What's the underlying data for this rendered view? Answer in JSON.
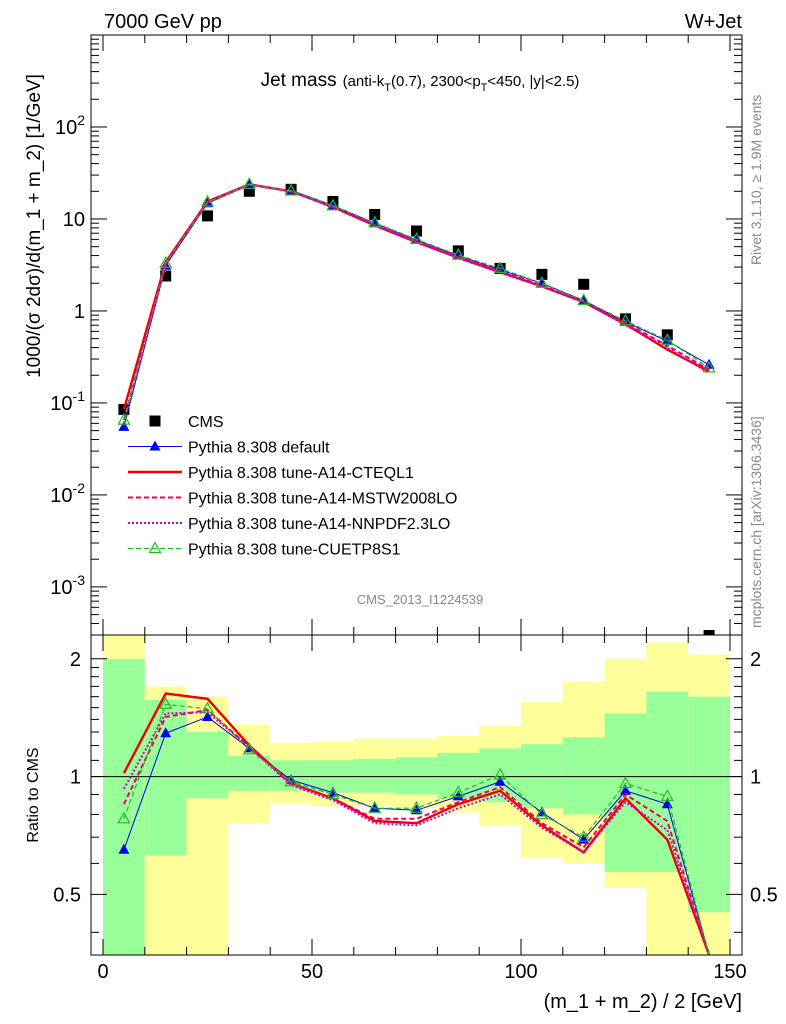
{
  "header": {
    "left": "7000 GeV pp",
    "right": "W+Jet"
  },
  "side_labels": {
    "rivet": "Rivet 3.1.10, ≥ 1.9M events",
    "source": "mcplots.cern.ch [arXiv:1306.3436]"
  },
  "watermark": "CMS_2013_I1224539",
  "plot_title": {
    "main": "Jet mass",
    "detail_start": "(anti-k",
    "detail_sub1": "T",
    "detail_mid": "(0.7), 2300<p",
    "detail_sub2": "T",
    "detail_end": "<450, |y|<2.5)"
  },
  "colors": {
    "cms": "#000000",
    "default": "#0000ee",
    "cteql1": "#ee0000",
    "mstw": "#ee0066",
    "nnpdf": "#cc00cc",
    "cuetp8s1": "#22bb22",
    "band_inner": "#99ff99",
    "band_outer": "#ffff99"
  },
  "chart_data": [
    {
      "type": "line",
      "panel": "main",
      "ylabel": "1000/(σ 2dσ)/d(m_1 + m_2) [1/GeV]",
      "xlim": [
        0,
        150
      ],
      "ylim": [
        0.0003,
        1000
      ],
      "yscale": "log",
      "x": [
        5,
        15,
        25,
        35,
        45,
        55,
        65,
        75,
        85,
        95,
        105,
        115,
        125,
        135,
        145
      ],
      "yticks": [
        {
          "v": 0.001,
          "b": "10",
          "e": "-3"
        },
        {
          "v": 0.01,
          "b": "10",
          "e": "-2"
        },
        {
          "v": 0.1,
          "b": "10",
          "e": "-1"
        },
        {
          "v": 1,
          "b": "1",
          "e": ""
        },
        {
          "v": 10,
          "b": "10",
          "e": ""
        },
        {
          "v": 100,
          "b": "10",
          "e": "2"
        }
      ],
      "series": [
        {
          "name": "CMS",
          "key": "cms",
          "values": [
            0.085,
            2.4,
            10.8,
            20.0,
            21.0,
            15.5,
            11.2,
            7.4,
            4.5,
            2.9,
            2.5,
            1.95,
            0.82,
            0.55,
            0.00022
          ]
        },
        {
          "name": "Pythia 8.308 default",
          "key": "default",
          "values": [
            0.055,
            3.1,
            14.8,
            23.5,
            20.5,
            14.0,
            9.0,
            5.9,
            4.0,
            2.8,
            2.0,
            1.3,
            0.76,
            0.47,
            0.26
          ]
        },
        {
          "name": "Pythia 8.308 tune-A14-CTEQL1",
          "key": "cteql1",
          "values": [
            0.085,
            3.4,
            15.5,
            23.8,
            20.0,
            13.5,
            8.5,
            5.6,
            3.8,
            2.65,
            1.85,
            1.25,
            0.72,
            0.38,
            0.22
          ]
        },
        {
          "name": "Pythia 8.308 tune-A14-MSTW2008LO",
          "key": "mstw",
          "values": [
            0.065,
            3.3,
            15.2,
            23.7,
            20.0,
            13.6,
            8.6,
            5.7,
            3.85,
            2.7,
            1.9,
            1.27,
            0.74,
            0.42,
            0.23
          ]
        },
        {
          "name": "Pythia 8.308 tune-A14-NNPDF2.3LO",
          "key": "nnpdf",
          "values": [
            0.06,
            3.2,
            15.0,
            23.6,
            20.0,
            13.5,
            8.5,
            5.6,
            3.75,
            2.6,
            1.85,
            1.25,
            0.7,
            0.4,
            0.21
          ]
        },
        {
          "name": "Pythia 8.308 tune-CUETP8S1",
          "key": "cuetp8s1",
          "values": [
            0.065,
            3.3,
            15.3,
            23.8,
            20.2,
            13.9,
            9.1,
            6.0,
            4.05,
            2.9,
            2.0,
            1.3,
            0.78,
            0.48,
            0.24
          ]
        }
      ]
    },
    {
      "type": "line",
      "panel": "ratio",
      "xlabel": "(m_1 + m_2) / 2 [GeV]",
      "ylabel": "Ratio to CMS",
      "xlim": [
        0,
        150
      ],
      "ylim": [
        0.35,
        2.3
      ],
      "yscale": "log",
      "xticks": [
        0,
        50,
        100,
        150
      ],
      "yticks": [
        0.5,
        1,
        2
      ],
      "reference": 1,
      "bands": {
        "edges": [
          0,
          10,
          20,
          30,
          40,
          50,
          60,
          70,
          80,
          90,
          100,
          110,
          120,
          130,
          140,
          150
        ],
        "inner": [
          [
            0.35,
            2.0
          ],
          [
            0.63,
            1.57
          ],
          [
            0.88,
            1.3
          ],
          [
            0.92,
            1.13
          ],
          [
            0.92,
            1.1
          ],
          [
            0.91,
            1.1
          ],
          [
            0.91,
            1.11
          ],
          [
            0.9,
            1.12
          ],
          [
            0.88,
            1.15
          ],
          [
            0.86,
            1.18
          ],
          [
            0.83,
            1.21
          ],
          [
            0.8,
            1.26
          ],
          [
            0.57,
            1.45
          ],
          [
            0.57,
            1.65
          ],
          [
            0.45,
            1.6
          ]
        ],
        "outer": [
          [
            0.35,
            2.3
          ],
          [
            0.35,
            1.7
          ],
          [
            0.35,
            1.6
          ],
          [
            0.76,
            1.36
          ],
          [
            0.85,
            1.22
          ],
          [
            0.84,
            1.23
          ],
          [
            0.84,
            1.25
          ],
          [
            0.83,
            1.25
          ],
          [
            0.81,
            1.27
          ],
          [
            0.75,
            1.35
          ],
          [
            0.62,
            1.55
          ],
          [
            0.6,
            1.75
          ],
          [
            0.52,
            2.0
          ],
          [
            0.35,
            2.2
          ],
          [
            0.35,
            2.05
          ]
        ]
      },
      "series": [
        {
          "name": "Pythia 8.308 default",
          "key": "default",
          "values": [
            0.65,
            1.29,
            1.42,
            1.18,
            0.98,
            0.91,
            0.83,
            0.82,
            0.89,
            0.97,
            0.81,
            0.69,
            0.92,
            0.85,
            0.3
          ]
        },
        {
          "name": "Pythia 8.308 tune-A14-CTEQL1",
          "key": "cteql1",
          "values": [
            1.02,
            1.63,
            1.58,
            1.2,
            0.96,
            0.88,
            0.77,
            0.76,
            0.85,
            0.92,
            0.75,
            0.64,
            0.88,
            0.69,
            0.3
          ]
        },
        {
          "name": "Pythia 8.308 tune-A14-MSTW2008LO",
          "key": "mstw",
          "values": [
            0.85,
            1.42,
            1.48,
            1.19,
            0.96,
            0.88,
            0.78,
            0.78,
            0.86,
            0.94,
            0.76,
            0.66,
            0.9,
            0.77,
            0.3
          ]
        },
        {
          "name": "Pythia 8.308 tune-A14-NNPDF2.3LO",
          "key": "nnpdf",
          "values": [
            0.93,
            1.45,
            1.46,
            1.19,
            0.95,
            0.87,
            0.76,
            0.75,
            0.83,
            0.9,
            0.74,
            0.64,
            0.86,
            0.73,
            0.3
          ]
        },
        {
          "name": "Pythia 8.308 tune-CUETP8S1",
          "key": "cuetp8s1",
          "values": [
            0.78,
            1.53,
            1.49,
            1.17,
            0.97,
            0.9,
            0.83,
            0.83,
            0.91,
            1.01,
            0.8,
            0.7,
            0.96,
            0.89,
            0.3
          ]
        }
      ]
    }
  ]
}
